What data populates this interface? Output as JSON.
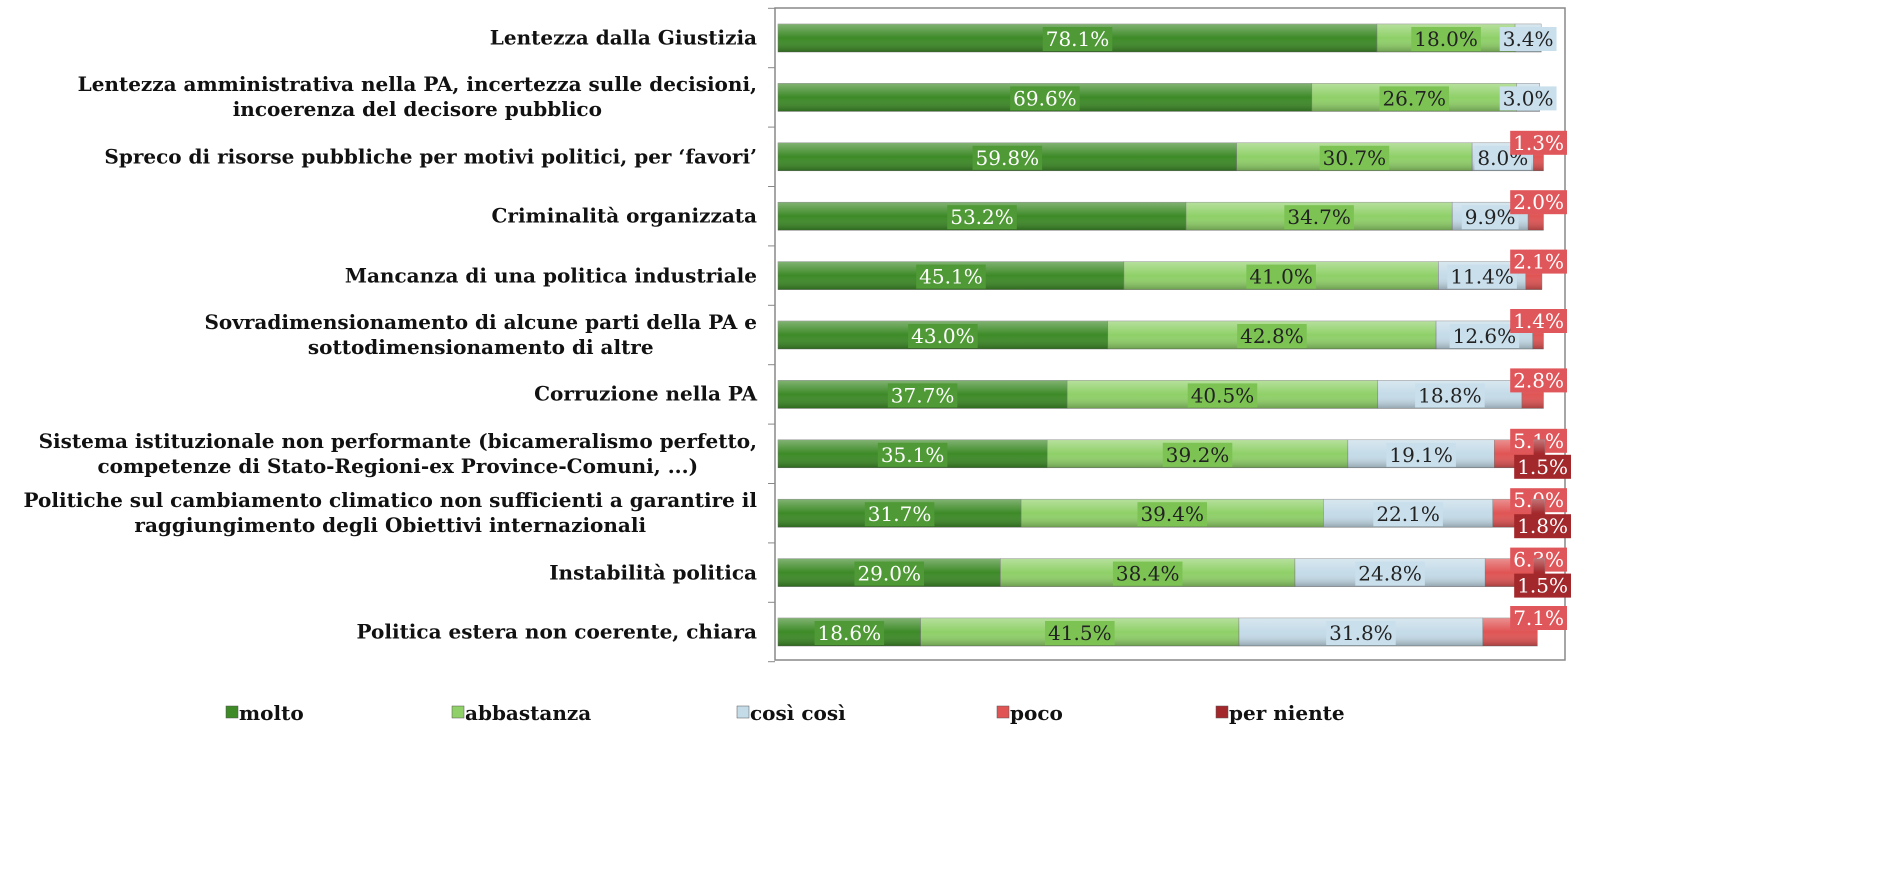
{
  "chart_data": {
    "type": "stacked-bar-horizontal",
    "categories": [
      "Lentezza dalla Giustizia",
      "Lentezza amministrativa nella PA, incertezza sulle decisioni,\nincoerenza del decisore pubblico",
      "Spreco di risorse pubbliche per motivi politici, per ‘favori’",
      "Criminalità organizzata",
      "Mancanza di una politica industriale",
      "Sovradimensionamento di alcune parti della PA e\nsottodimensionamento di altre",
      "Corruzione nella PA",
      "Sistema istituzionale non performante (bicameralismo perfetto,\ncompetenze di Stato-Regioni-ex Province-Comuni, ...)",
      "Politiche sul cambiamento climatico non sufficienti a garantire il\nraggiungimento degli Obiettivi internazionali",
      "Instabilità politica",
      "Politica estera non coerente, chiara"
    ],
    "xlim": [
      0,
      100
    ],
    "series": [
      {
        "name": "molto",
        "color": "#3d8a27",
        "values": [
          78.1,
          69.6,
          59.8,
          53.2,
          45.1,
          43.0,
          37.7,
          35.1,
          31.7,
          29.0,
          18.6
        ],
        "value_labels": [
          "78.1%",
          "69.6%",
          "59.8%",
          "53.2%",
          "45.1%",
          "43.0%",
          "37.7%",
          "35.1%",
          "31.7%",
          "29.0%",
          "18.6%"
        ]
      },
      {
        "name": "abbastanza",
        "color": "#8fd068",
        "values": [
          18.0,
          26.7,
          30.7,
          34.7,
          41.0,
          42.8,
          40.5,
          39.2,
          39.4,
          38.4,
          41.5
        ],
        "value_labels": [
          "18.0%",
          "26.7%",
          "30.7%",
          "34.7%",
          "41.0%",
          "42.8%",
          "40.5%",
          "39.2%",
          "39.4%",
          "38.4%",
          "41.5%"
        ]
      },
      {
        "name": "così così",
        "color": "#c4dbe8",
        "values": [
          3.4,
          3.0,
          8.0,
          9.9,
          11.4,
          12.6,
          18.8,
          19.1,
          22.1,
          24.8,
          31.8
        ],
        "value_labels": [
          "3.4%",
          "3.0%",
          "8.0%",
          "9.9%",
          "11.4%",
          "12.6%",
          "18.8%",
          "19.1%",
          "22.1%",
          "24.8%",
          "31.8%"
        ]
      },
      {
        "name": "poco",
        "color": "#e05454",
        "values": [
          null,
          null,
          1.3,
          2.0,
          2.1,
          1.4,
          2.8,
          5.1,
          5.0,
          6.3,
          7.1
        ],
        "value_labels": [
          null,
          null,
          "1.3%",
          "2.0%",
          "2.1%",
          "1.4%",
          "2.8%",
          "5.1%",
          "5.0%",
          "6.3%",
          "7.1%"
        ]
      },
      {
        "name": "per niente",
        "color": "#a3282c",
        "values": [
          null,
          null,
          null,
          null,
          null,
          null,
          null,
          1.5,
          1.8,
          1.5,
          null
        ],
        "value_labels": [
          null,
          null,
          null,
          null,
          null,
          null,
          null,
          "1.5%",
          "1.8%",
          "1.5%",
          null
        ]
      }
    ]
  }
}
